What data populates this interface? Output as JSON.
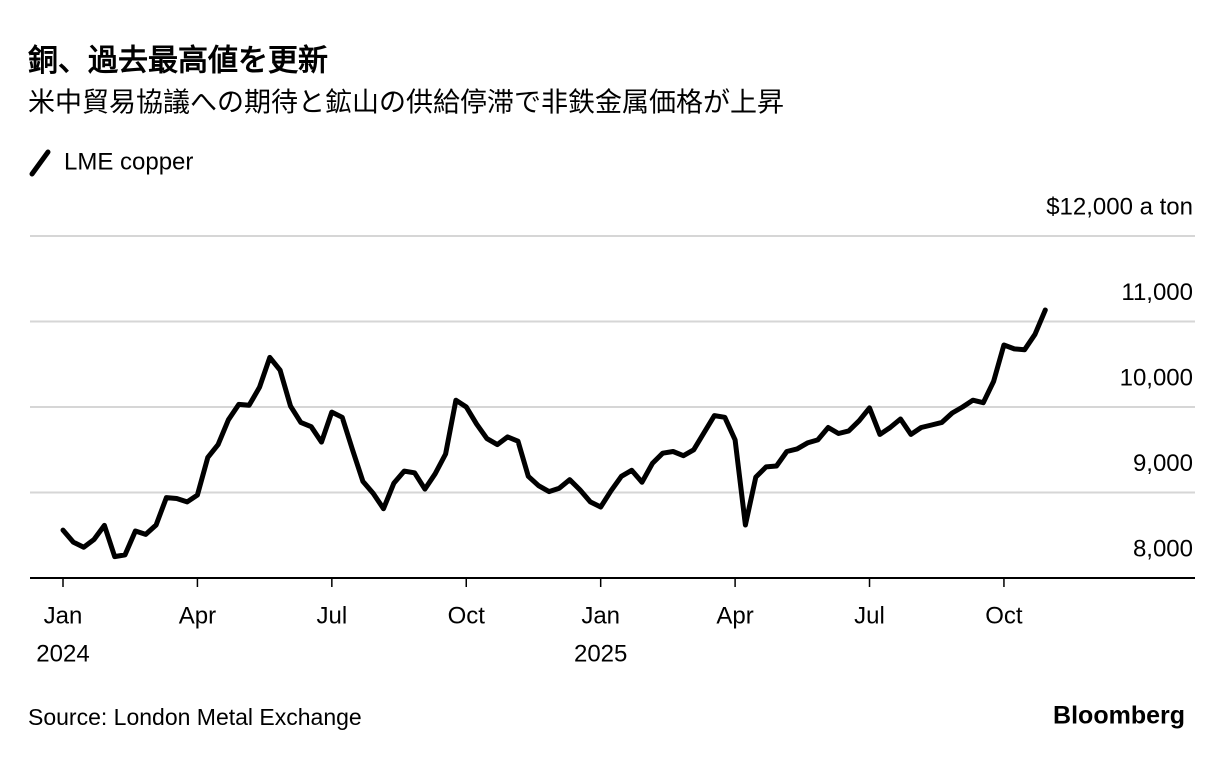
{
  "chart_data": {
    "type": "line",
    "title": "銅、過去最高値を更新",
    "subtitle": "米中貿易協議への期待と鉱山の供給停滞で非鉄金属価格が上昇",
    "source": "Source: London Metal Exchange",
    "brand": "Bloomberg",
    "categories": [
      "Jan",
      null,
      null,
      null,
      null,
      null,
      null,
      null,
      null,
      null,
      null,
      null,
      null,
      "Apr",
      null,
      null,
      null,
      null,
      null,
      null,
      null,
      null,
      null,
      null,
      null,
      null,
      "Jul",
      null,
      null,
      null,
      null,
      null,
      null,
      null,
      null,
      null,
      null,
      null,
      null,
      "Oct",
      null,
      null,
      null,
      null,
      null,
      null,
      null,
      null,
      null,
      null,
      null,
      null,
      "Jan",
      null,
      null,
      null,
      null,
      null,
      null,
      null,
      null,
      null,
      null,
      null,
      null,
      "Apr",
      null,
      null,
      null,
      null,
      null,
      null,
      null,
      null,
      null,
      null,
      null,
      null,
      "Jul",
      null,
      null,
      null,
      null,
      null,
      null,
      null,
      null,
      null,
      null,
      null,
      null,
      "Oct",
      null,
      null,
      null,
      null
    ],
    "category_years": [
      "2024",
      null,
      null,
      null,
      null,
      null,
      null,
      null,
      null,
      null,
      null,
      null,
      null,
      null,
      null,
      null,
      null,
      null,
      null,
      null,
      null,
      null,
      null,
      null,
      null,
      null,
      null,
      null,
      null,
      null,
      null,
      null,
      null,
      null,
      null,
      null,
      null,
      null,
      null,
      null,
      null,
      null,
      null,
      null,
      null,
      null,
      null,
      null,
      null,
      null,
      null,
      null,
      "2025",
      null,
      null,
      null,
      null,
      null,
      null,
      null,
      null,
      null,
      null,
      null,
      null,
      null,
      null,
      null,
      null,
      null,
      null,
      null,
      null,
      null,
      null,
      null,
      null,
      null,
      null,
      null,
      null,
      null,
      null,
      null,
      null,
      null,
      null,
      null,
      null,
      null,
      null,
      null,
      null,
      null,
      null,
      null
    ],
    "series": [
      {
        "name": "LME copper",
        "color": "#000000",
        "values": [
          8560,
          8420,
          8360,
          8450,
          8615,
          8250,
          8270,
          8550,
          8510,
          8620,
          8940,
          8930,
          8890,
          8970,
          9410,
          9560,
          9850,
          10030,
          10020,
          10230,
          10580,
          10430,
          10010,
          9820,
          9770,
          9590,
          9940,
          9880,
          9500,
          9130,
          8990,
          8810,
          9110,
          9250,
          9230,
          9040,
          9220,
          9450,
          10080,
          10000,
          9800,
          9630,
          9560,
          9650,
          9600,
          9190,
          9080,
          9010,
          9050,
          9150,
          9030,
          8890,
          8830,
          9020,
          9190,
          9260,
          9120,
          9340,
          9460,
          9480,
          9430,
          9500,
          9700,
          9900,
          9880,
          9615,
          8620,
          9180,
          9300,
          9310,
          9480,
          9510,
          9580,
          9615,
          9760,
          9690,
          9720,
          9840,
          9990,
          9680,
          9760,
          9860,
          9680,
          9760,
          9790,
          9820,
          9930,
          10000,
          10080,
          10050,
          10300,
          10725,
          10680,
          10670,
          10850,
          11135
        ]
      }
    ],
    "ylim": [
      8000,
      12000
    ],
    "yticks": [
      {
        "value": 8000,
        "label": "8,000"
      },
      {
        "value": 9000,
        "label": "9,000"
      },
      {
        "value": 10000,
        "label": "10,000"
      },
      {
        "value": 11000,
        "label": "11,000"
      },
      {
        "value": 12000,
        "label": "$12,000 a ton"
      }
    ],
    "grid": true
  }
}
